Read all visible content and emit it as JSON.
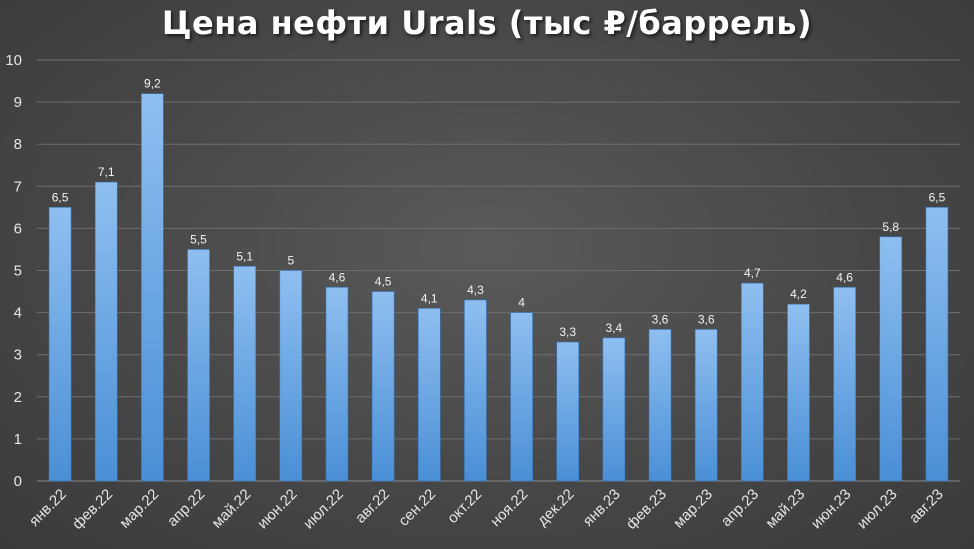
{
  "colors": {
    "bar_top": "#8fbff0",
    "bar_bottom": "#4a8fd6",
    "bar_stroke": "#3a78bd"
  },
  "chart_data": {
    "type": "bar",
    "title": "Цена нефти Urals (тыс ₽/баррель)",
    "xlabel": "",
    "ylabel": "",
    "ylim": [
      0,
      10
    ],
    "yticks": [
      "0",
      "1",
      "2",
      "3",
      "4",
      "5",
      "6",
      "7",
      "8",
      "9",
      "10"
    ],
    "grid": true,
    "categories": [
      "янв.22",
      "фев.22",
      "мар.22",
      "апр.22",
      "май.22",
      "июн.22",
      "июл.22",
      "авг.22",
      "сен.22",
      "окт.22",
      "ноя.22",
      "дек.22",
      "янв.23",
      "фев.23",
      "мар.23",
      "апр.23",
      "май.23",
      "июн.23",
      "июл.23",
      "авг.23"
    ],
    "values": [
      6.5,
      7.1,
      9.2,
      5.5,
      5.1,
      5,
      4.6,
      4.5,
      4.1,
      4.3,
      4,
      3.3,
      3.4,
      3.6,
      3.6,
      4.7,
      4.2,
      4.6,
      5.8,
      6.5
    ],
    "value_labels": [
      "6,5",
      "7,1",
      "9,2",
      "5,5",
      "5,1",
      "5",
      "4,6",
      "4,5",
      "4,1",
      "4,3",
      "4",
      "3,3",
      "3,4",
      "3,6",
      "3,6",
      "4,7",
      "4,2",
      "4,6",
      "5,8",
      "6,5"
    ]
  }
}
